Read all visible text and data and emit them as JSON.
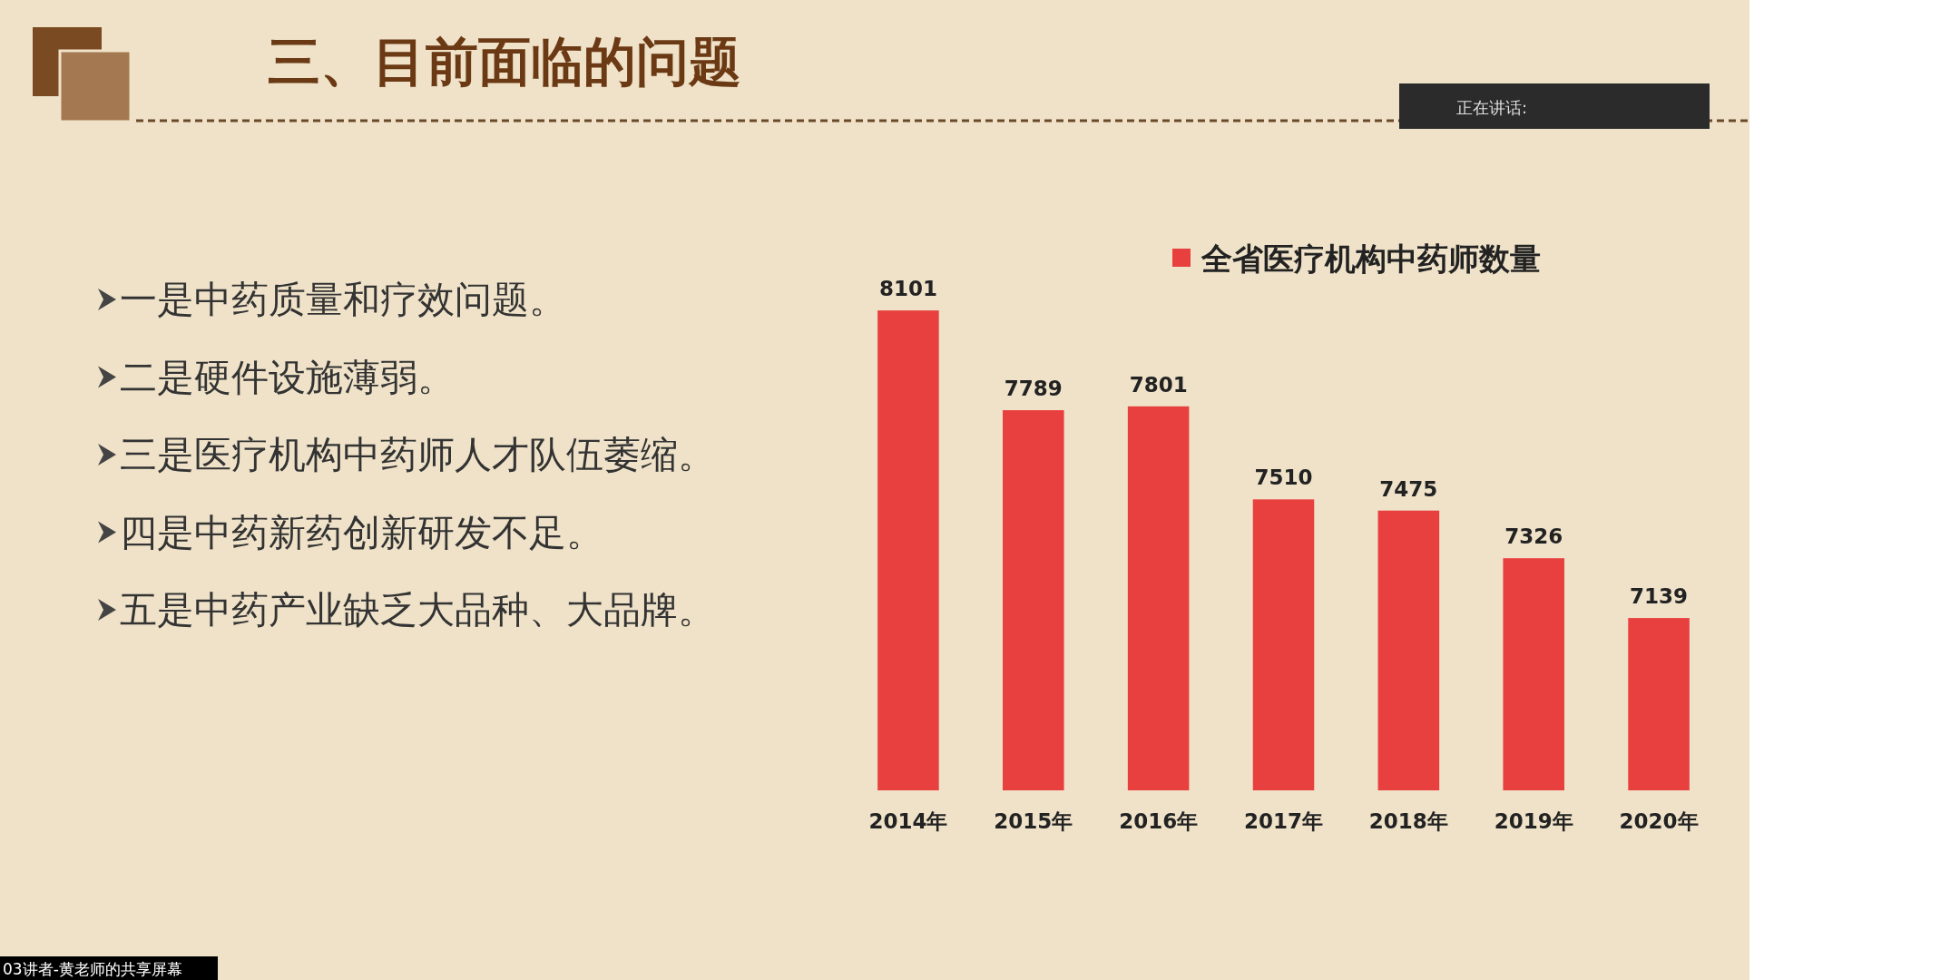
{
  "chart_data": {
    "type": "bar",
    "title": "三、目前面临的问题",
    "categories": [
      "2014年",
      "2015年",
      "2016年",
      "2017年",
      "2018年",
      "2019年",
      "2020年"
    ],
    "series": [
      {
        "name": "全省医疗机构中药师数量",
        "color": "#e8403f",
        "values": [
          8101,
          7789,
          7801,
          7510,
          7475,
          7326,
          7139
        ]
      }
    ],
    "ylim": [
      6600,
      8300
    ],
    "data_labels": true,
    "legend": "top right",
    "annotations": [
      "一是中药质量和疗效问题。",
      "二是硬件设施薄弱。",
      "三是医疗机构中药师人才队伍萎缩。",
      "四是中药新药创新研发不足。",
      "五是中药产业缺乏大品种、大品牌。",
      "正在讲话:",
      "03讲者-黄老师的共享屏幕"
    ]
  }
}
